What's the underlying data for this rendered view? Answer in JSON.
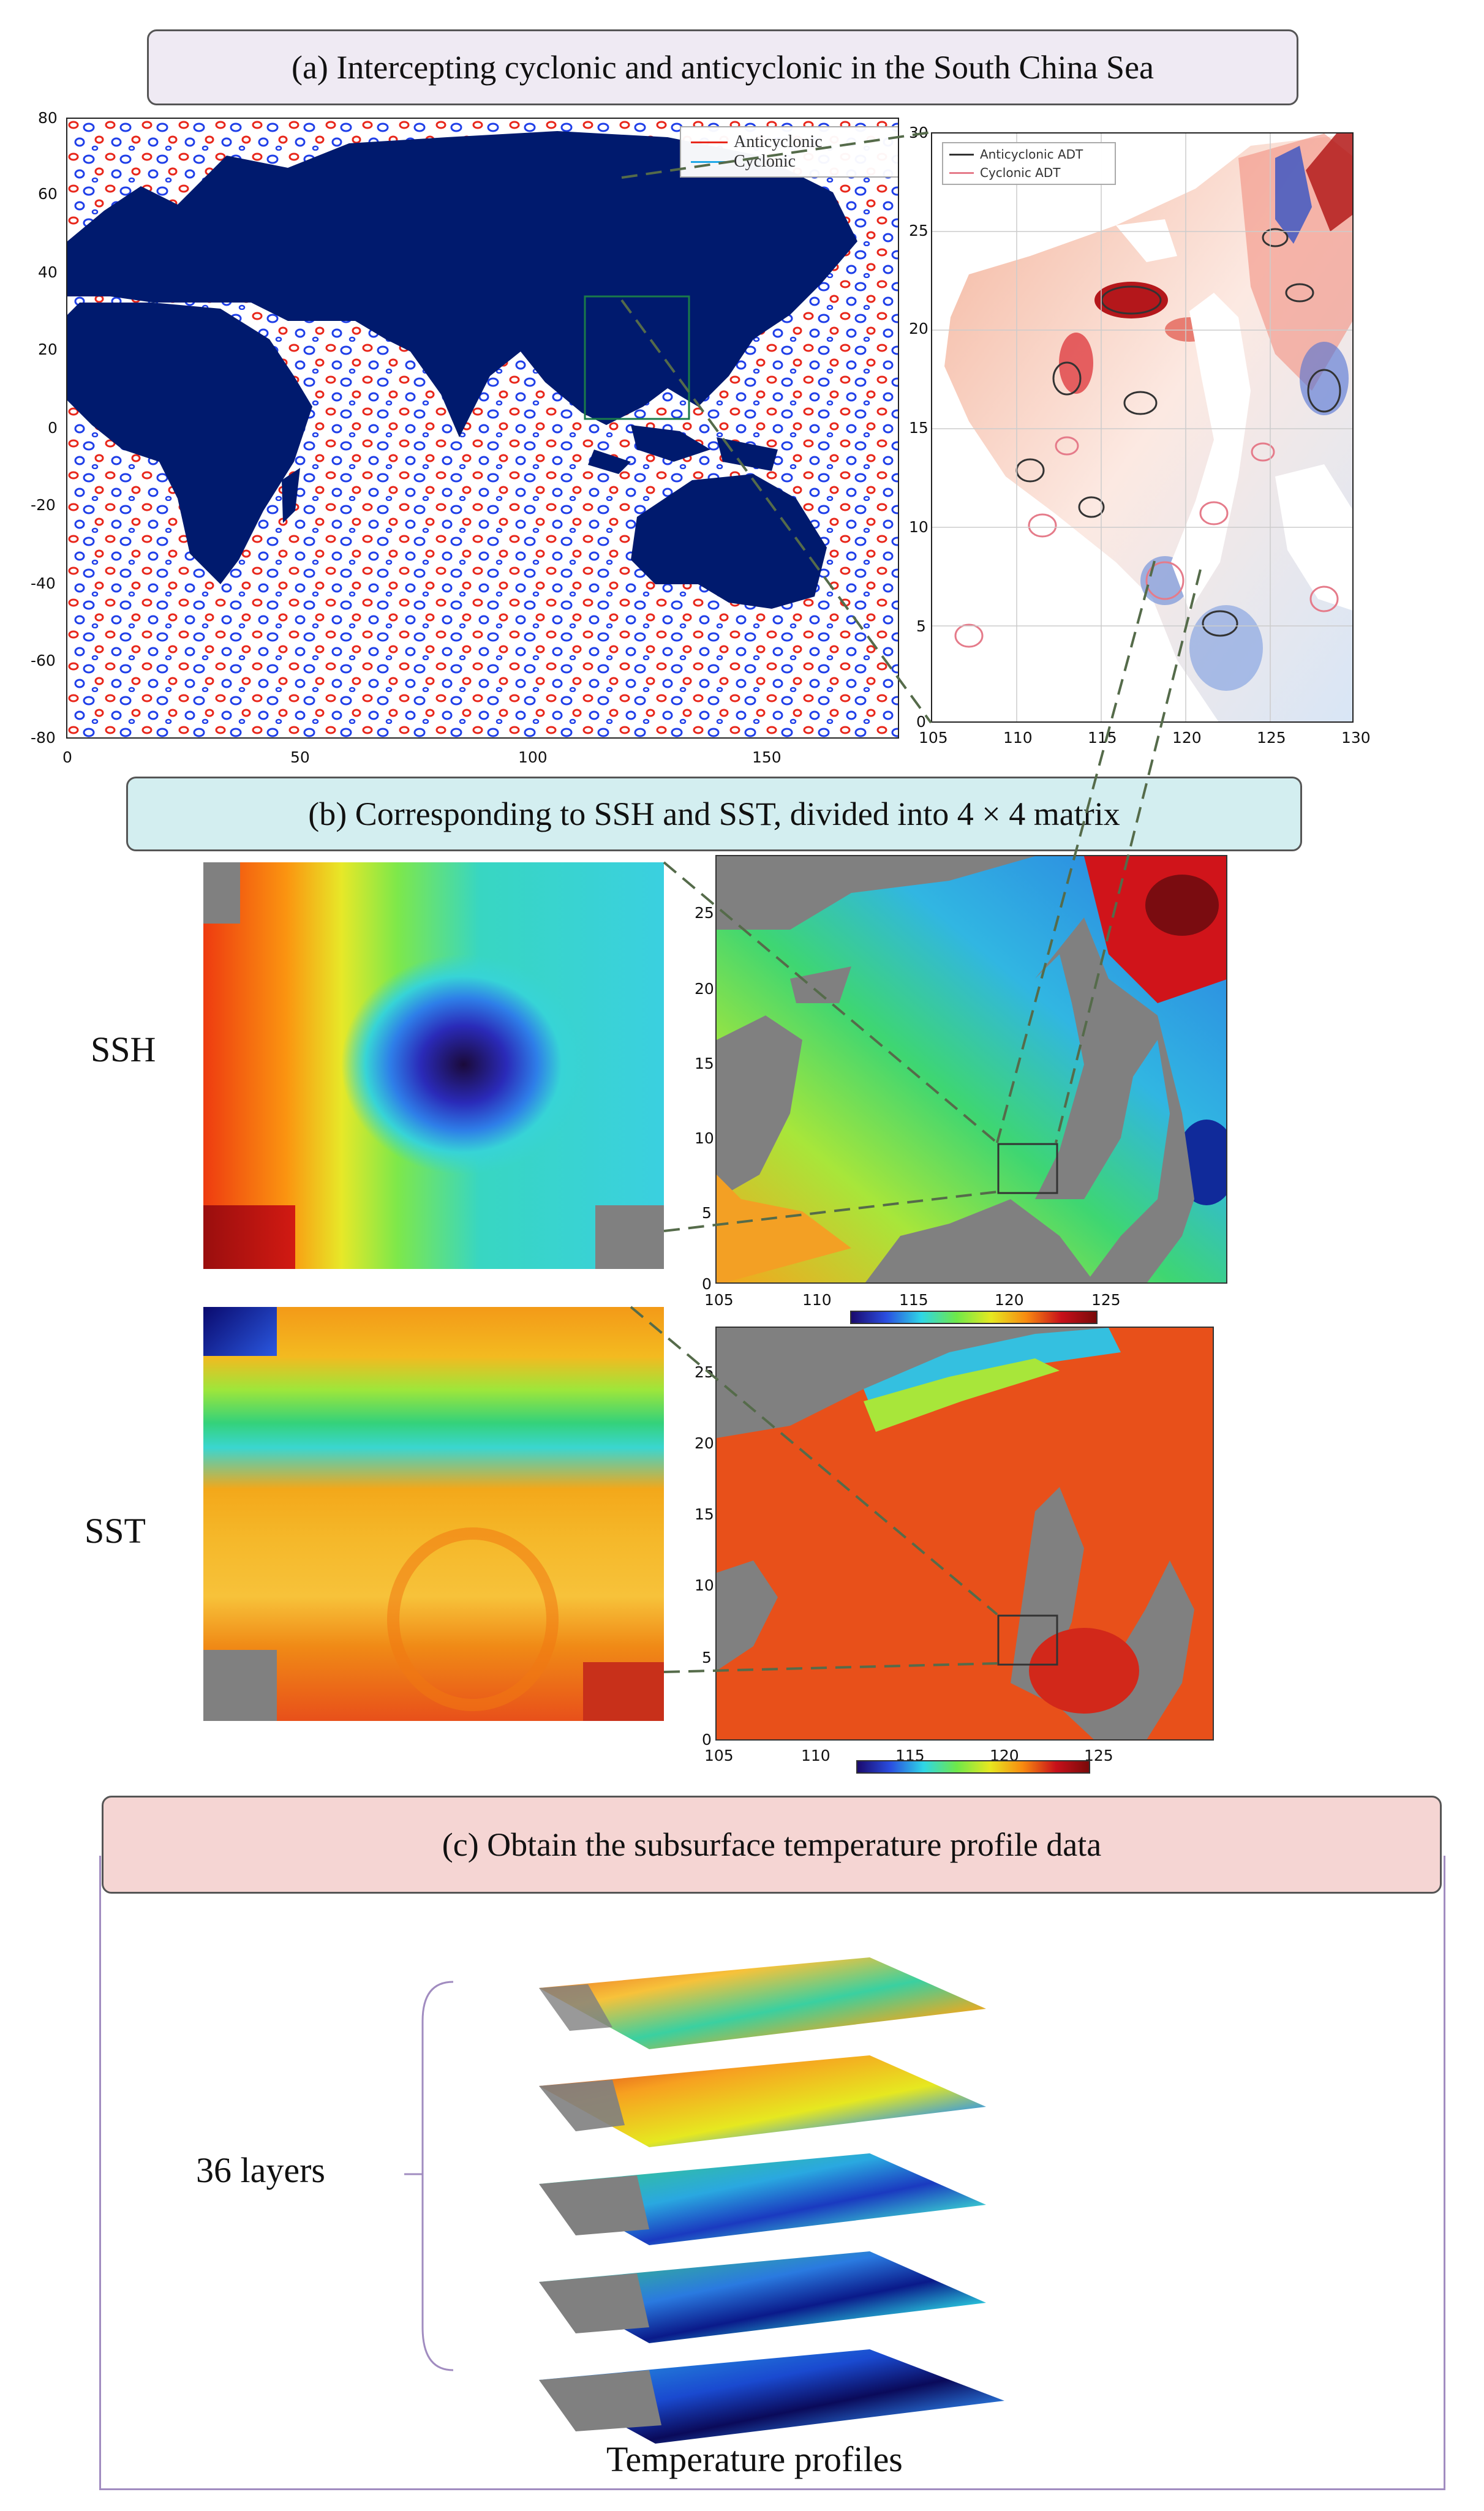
{
  "panel_a": {
    "title": "(a) Intercepting cyclonic and anticyclonic  in the South China Sea",
    "global_map": {
      "legend": [
        "Anticyclonic",
        "Cyclonic"
      ],
      "y_ticks": [
        "80",
        "60",
        "40",
        "20",
        "0",
        "-20",
        "-40",
        "-60",
        "-80"
      ],
      "x_ticks": [
        "0",
        "50",
        "100",
        "150"
      ],
      "colors": {
        "land": "#001a6e",
        "anticyclonic": "#e8271b",
        "cyclonic": "#1f3fe8"
      }
    },
    "scs_map": {
      "legend": [
        "Anticyclonic ADT",
        "Cyclonic ADT"
      ],
      "y_ticks": [
        "30",
        "25",
        "20",
        "15",
        "10",
        "5",
        "0"
      ],
      "x_ticks": [
        "105",
        "110",
        "115",
        "120",
        "125",
        "130"
      ]
    }
  },
  "panel_b": {
    "title": "(b) Corresponding to SSH and SST, divided into 4 × 4  matrix",
    "ssh_label": "SSH",
    "sst_label": "SST",
    "map_y_ticks": [
      "25",
      "20",
      "15",
      "10",
      "5",
      "0"
    ],
    "map_x_ticks": [
      "105",
      "110",
      "115",
      "120",
      "125"
    ]
  },
  "panel_c": {
    "title": "(c)  Obtain the subsurface temperature  profile data",
    "layers_label": "36 layers",
    "profiles_label": "Temperature profiles"
  }
}
